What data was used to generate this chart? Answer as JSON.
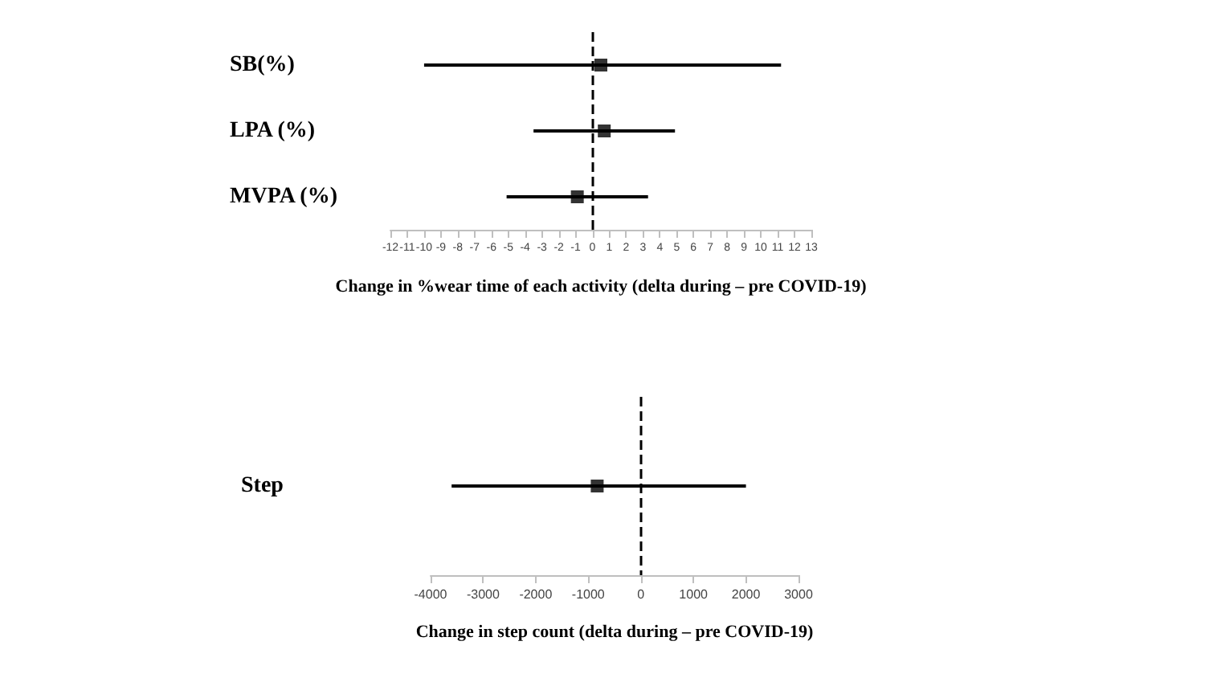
{
  "chart_data": [
    {
      "type": "scatter",
      "orientation": "horizontal",
      "categories": [
        "SB(%)",
        "LPA (%)",
        "MVPA (%)"
      ],
      "values": [
        0.5,
        0.7,
        -0.9
      ],
      "errors": [
        [
          -10,
          11.2
        ],
        [
          -3.5,
          4.9
        ],
        [
          -5.1,
          3.3
        ]
      ],
      "color": "#000000",
      "marker": "square",
      "xlim": [
        -12,
        13
      ],
      "xticks": [
        -12,
        -11,
        -10,
        -9,
        -8,
        -7,
        -6,
        -5,
        -4,
        -3,
        -2,
        -1,
        0,
        1,
        2,
        3,
        4,
        5,
        6,
        7,
        8,
        9,
        10,
        11,
        12,
        13
      ],
      "xlabel": "Change in %wear time of each activity (delta during – pre COVID-19)",
      "ref_lines": [
        {
          "axis": "x",
          "value": 0,
          "line_style": "dashed",
          "color": "#000000"
        }
      ],
      "grid": false
    },
    {
      "type": "scatter",
      "orientation": "horizontal",
      "categories": [
        "Step"
      ],
      "values": [
        -830
      ],
      "errors": [
        [
          -3600,
          2000
        ]
      ],
      "color": "#000000",
      "marker": "square",
      "xlim": [
        -4000,
        3000
      ],
      "xticks": [
        -4000,
        -3000,
        -2000,
        -1000,
        0,
        1000,
        2000,
        3000
      ],
      "xlabel": "Change in step count (delta during – pre COVID-19)",
      "ref_lines": [
        {
          "axis": "x",
          "value": 0,
          "line_style": "dashed",
          "color": "#000000"
        }
      ],
      "grid": false
    }
  ]
}
